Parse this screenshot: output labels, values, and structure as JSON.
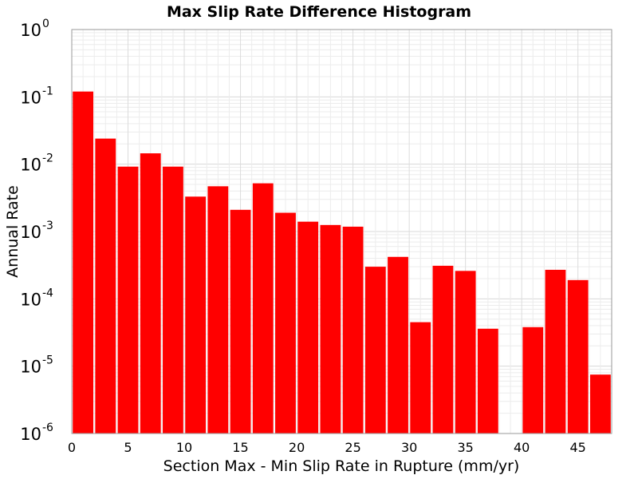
{
  "chart_data": {
    "type": "bar",
    "title": "Max Slip Rate Difference Histogram",
    "xlabel": "Section Max - Min Slip Rate in Rupture (mm/yr)",
    "ylabel": "Annual Rate",
    "yscale": "log",
    "ylim": [
      1e-06,
      1
    ],
    "xlim": [
      0,
      48
    ],
    "grid": true,
    "bar_color": "#ff0000",
    "bin_width": 2,
    "x_ticks": [
      "0",
      "5",
      "10",
      "15",
      "20",
      "25",
      "30",
      "35",
      "40",
      "45"
    ],
    "y_tick_exponents": [
      "0",
      "-1",
      "-2",
      "-3",
      "-4",
      "-5",
      "-6"
    ],
    "bins": [
      {
        "x": 0,
        "value": 0.12
      },
      {
        "x": 2,
        "value": 0.024
      },
      {
        "x": 4,
        "value": 0.0092
      },
      {
        "x": 6,
        "value": 0.0145
      },
      {
        "x": 8,
        "value": 0.0092
      },
      {
        "x": 10,
        "value": 0.0033
      },
      {
        "x": 12,
        "value": 0.0047
      },
      {
        "x": 14,
        "value": 0.0021
      },
      {
        "x": 16,
        "value": 0.0052
      },
      {
        "x": 18,
        "value": 0.0019
      },
      {
        "x": 20,
        "value": 0.0014
      },
      {
        "x": 22,
        "value": 0.00125
      },
      {
        "x": 24,
        "value": 0.00118
      },
      {
        "x": 26,
        "value": 0.0003
      },
      {
        "x": 28,
        "value": 0.00042
      },
      {
        "x": 30,
        "value": 4.5e-05
      },
      {
        "x": 32,
        "value": 0.00031
      },
      {
        "x": 34,
        "value": 0.00026
      },
      {
        "x": 36,
        "value": 3.6e-05
      },
      {
        "x": 40,
        "value": 3.8e-05
      },
      {
        "x": 42,
        "value": 0.00027
      },
      {
        "x": 44,
        "value": 0.00019
      },
      {
        "x": 46,
        "value": 7.5e-06
      }
    ]
  }
}
